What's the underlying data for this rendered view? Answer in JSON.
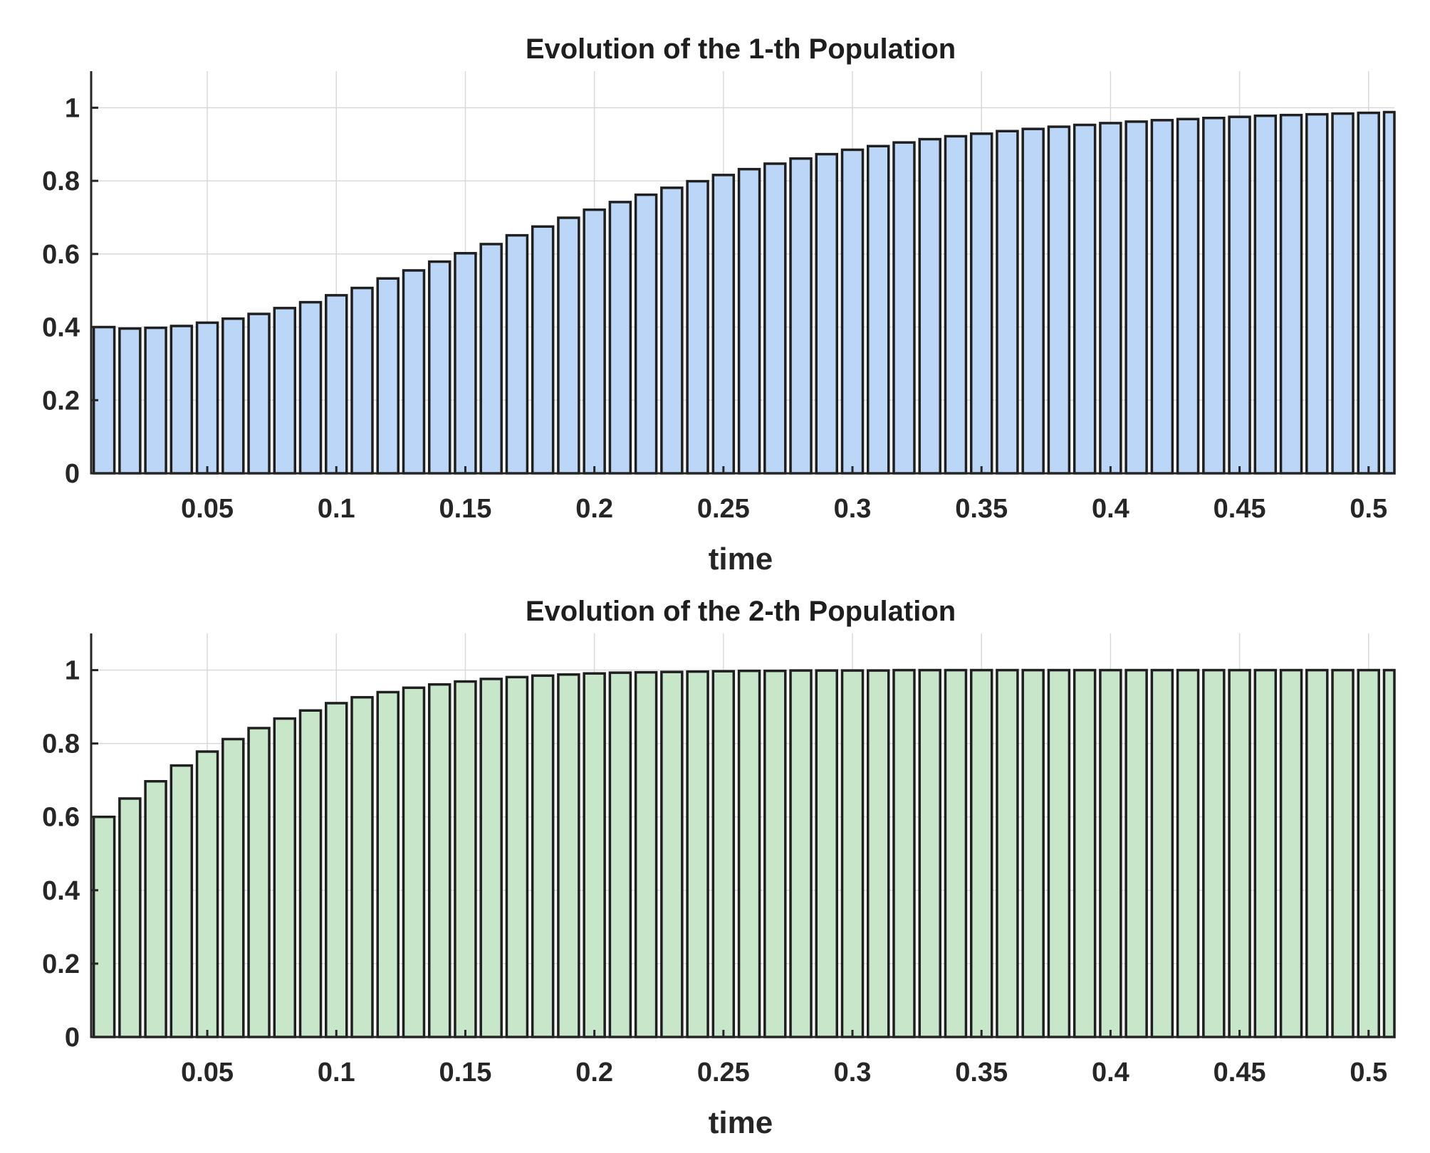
{
  "chart_data": [
    {
      "type": "bar",
      "title": "Evolution of the 1-th Population",
      "xlabel": "time",
      "ylabel": "",
      "xlim": [
        0.005,
        0.51
      ],
      "ylim": [
        0,
        1.1
      ],
      "grid": true,
      "bar_color": "#bcd6f7",
      "edge_color": "#1f1f1f",
      "xticks": [
        0.05,
        0.1,
        0.15,
        0.2,
        0.25,
        0.3,
        0.35,
        0.4,
        0.45,
        0.5
      ],
      "xtick_labels": [
        "0.05",
        "0.1",
        "0.15",
        "0.2",
        "0.25",
        "0.3",
        "0.35",
        "0.4",
        "0.45",
        "0.5"
      ],
      "yticks": [
        0,
        0.2,
        0.4,
        0.6,
        0.8,
        1
      ],
      "ytick_labels": [
        "0",
        "0.2",
        "0.4",
        "0.6",
        "0.8",
        "1"
      ],
      "x": [
        0.01,
        0.02,
        0.03,
        0.04,
        0.05,
        0.06,
        0.07,
        0.08,
        0.09,
        0.1,
        0.11,
        0.12,
        0.13,
        0.14,
        0.15,
        0.16,
        0.17,
        0.18,
        0.19,
        0.2,
        0.21,
        0.22,
        0.23,
        0.24,
        0.25,
        0.26,
        0.27,
        0.28,
        0.29,
        0.3,
        0.31,
        0.32,
        0.33,
        0.34,
        0.35,
        0.36,
        0.37,
        0.38,
        0.39,
        0.4,
        0.41,
        0.42,
        0.43,
        0.44,
        0.45,
        0.46,
        0.47,
        0.48,
        0.49,
        0.5,
        0.51
      ],
      "values": [
        0.4,
        0.396,
        0.398,
        0.403,
        0.412,
        0.423,
        0.436,
        0.452,
        0.468,
        0.487,
        0.507,
        0.533,
        0.555,
        0.579,
        0.602,
        0.627,
        0.651,
        0.675,
        0.699,
        0.721,
        0.742,
        0.762,
        0.781,
        0.799,
        0.816,
        0.832,
        0.847,
        0.861,
        0.873,
        0.885,
        0.895,
        0.905,
        0.914,
        0.922,
        0.929,
        0.936,
        0.942,
        0.948,
        0.953,
        0.958,
        0.962,
        0.966,
        0.969,
        0.972,
        0.975,
        0.978,
        0.98,
        0.982,
        0.984,
        0.986,
        0.988
      ]
    },
    {
      "type": "bar",
      "title": "Evolution of the 2-th Population",
      "xlabel": "time",
      "ylabel": "",
      "xlim": [
        0.005,
        0.51
      ],
      "ylim": [
        0,
        1.1
      ],
      "grid": true,
      "bar_color": "#c8e6c9",
      "edge_color": "#1f1f1f",
      "xticks": [
        0.05,
        0.1,
        0.15,
        0.2,
        0.25,
        0.3,
        0.35,
        0.4,
        0.45,
        0.5
      ],
      "xtick_labels": [
        "0.05",
        "0.1",
        "0.15",
        "0.2",
        "0.25",
        "0.3",
        "0.35",
        "0.4",
        "0.45",
        "0.5"
      ],
      "yticks": [
        0,
        0.2,
        0.4,
        0.6,
        0.8,
        1
      ],
      "ytick_labels": [
        "0",
        "0.2",
        "0.4",
        "0.6",
        "0.8",
        "1"
      ],
      "x": [
        0.01,
        0.02,
        0.03,
        0.04,
        0.05,
        0.06,
        0.07,
        0.08,
        0.09,
        0.1,
        0.11,
        0.12,
        0.13,
        0.14,
        0.15,
        0.16,
        0.17,
        0.18,
        0.19,
        0.2,
        0.21,
        0.22,
        0.23,
        0.24,
        0.25,
        0.26,
        0.27,
        0.28,
        0.29,
        0.3,
        0.31,
        0.32,
        0.33,
        0.34,
        0.35,
        0.36,
        0.37,
        0.38,
        0.39,
        0.4,
        0.41,
        0.42,
        0.43,
        0.44,
        0.45,
        0.46,
        0.47,
        0.48,
        0.49,
        0.5,
        0.51
      ],
      "values": [
        0.6,
        0.65,
        0.697,
        0.74,
        0.778,
        0.812,
        0.842,
        0.868,
        0.89,
        0.91,
        0.926,
        0.94,
        0.952,
        0.961,
        0.969,
        0.976,
        0.981,
        0.985,
        0.988,
        0.991,
        0.993,
        0.994,
        0.995,
        0.996,
        0.997,
        0.998,
        0.998,
        0.999,
        0.999,
        0.999,
        0.999,
        1.0,
        1.0,
        1.0,
        1.0,
        1.0,
        1.0,
        1.0,
        1.0,
        1.0,
        1.0,
        1.0,
        1.0,
        1.0,
        1.0,
        1.0,
        1.0,
        1.0,
        1.0,
        1.0,
        1.0
      ]
    }
  ]
}
